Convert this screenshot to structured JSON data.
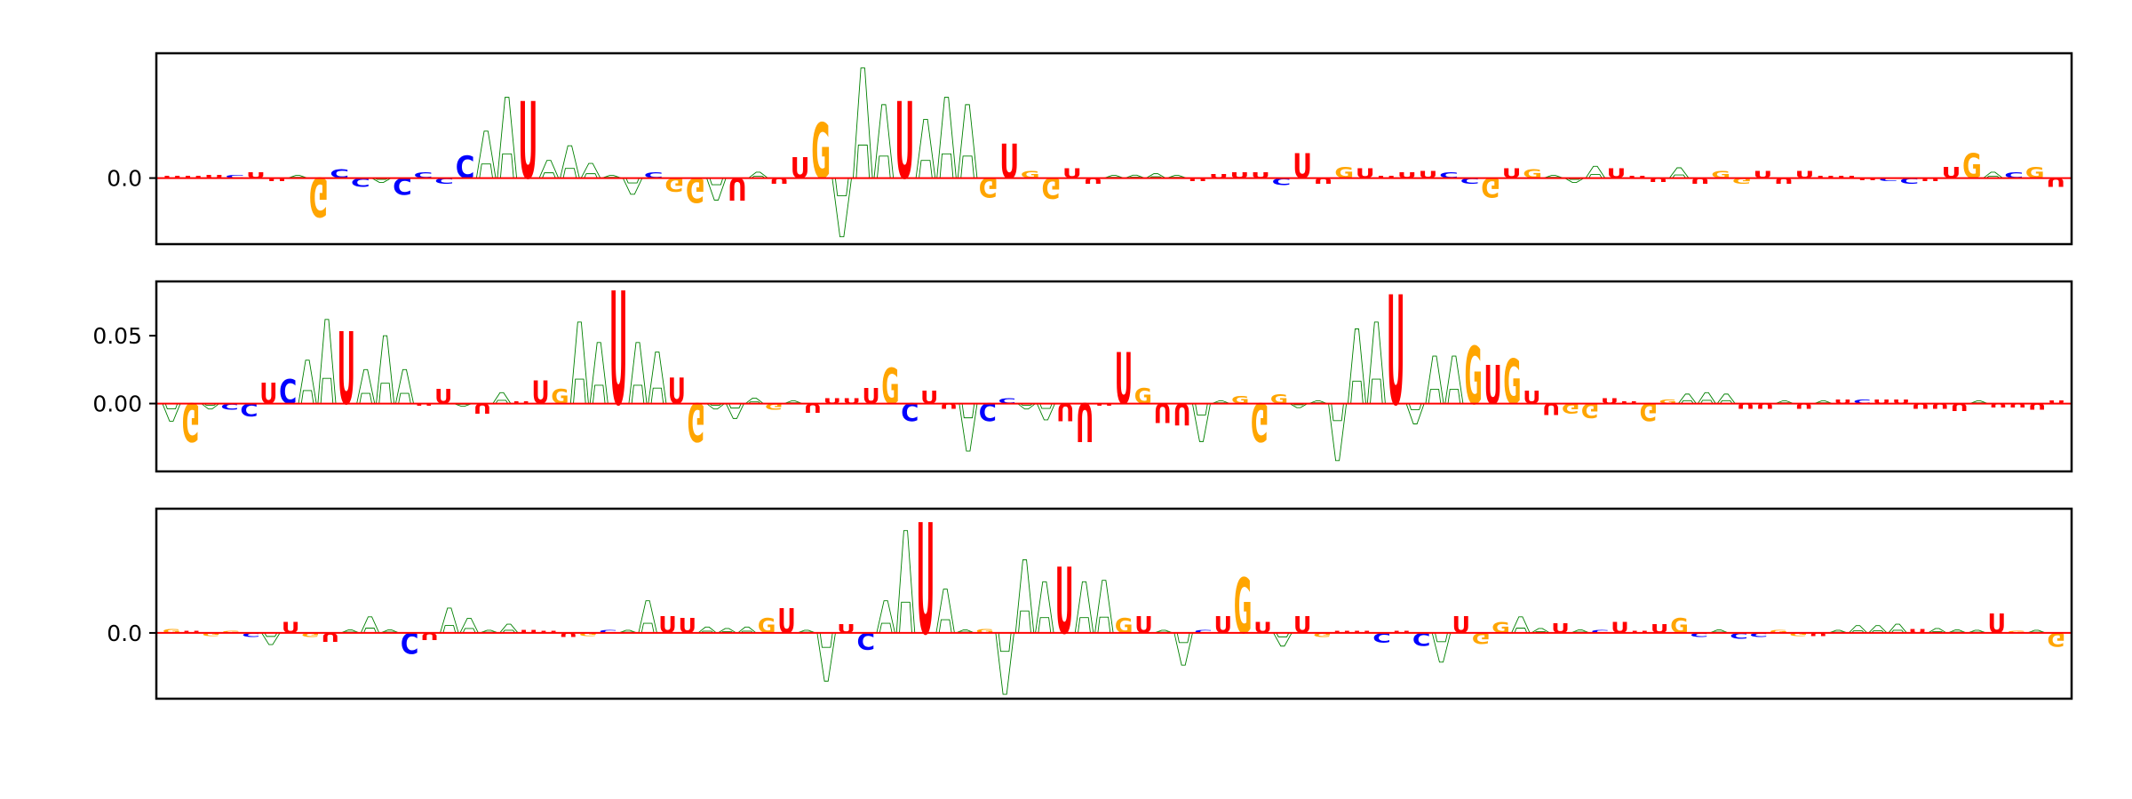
{
  "chart_data": [
    {
      "type": "sequence-logo",
      "ylim": [
        -0.045,
        0.085
      ],
      "yticks": [
        {
          "value": 0.0,
          "label": "0.0"
        }
      ],
      "colors": {
        "A": "#008000",
        "C": "#0000ff",
        "G": "#ffa500",
        "U": "#ff0000"
      },
      "positions": [
        {
          "l": "U",
          "v": 0.0
        },
        {
          "l": "U",
          "v": 0.001
        },
        {
          "l": "U",
          "v": 0.002
        },
        {
          "l": "C",
          "v": 0.002
        },
        {
          "l": "U",
          "v": 0.004
        },
        {
          "l": "U",
          "v": -0.002
        },
        {
          "l": "A",
          "v": 0.0
        },
        {
          "l": "G",
          "v": -0.028
        },
        {
          "l": "C",
          "v": 0.006
        },
        {
          "l": "C",
          "v": -0.006
        },
        {
          "l": "A",
          "v": -0.003
        },
        {
          "l": "C",
          "v": -0.012
        },
        {
          "l": "C",
          "v": 0.004
        },
        {
          "l": "C",
          "v": -0.004
        },
        {
          "l": "C",
          "v": 0.016
        },
        {
          "l": "A",
          "v": 0.032
        },
        {
          "l": "A",
          "v": 0.055
        },
        {
          "l": "U",
          "v": 0.055
        },
        {
          "l": "A",
          "v": 0.012
        },
        {
          "l": "A",
          "v": 0.022
        },
        {
          "l": "A",
          "v": 0.01
        },
        {
          "l": "A",
          "v": 0.001
        },
        {
          "l": "A",
          "v": -0.011
        },
        {
          "l": "C",
          "v": 0.004
        },
        {
          "l": "G",
          "v": -0.01
        },
        {
          "l": "G",
          "v": -0.018
        },
        {
          "l": "A",
          "v": -0.015
        },
        {
          "l": "U",
          "v": -0.016
        },
        {
          "l": "A",
          "v": 0.004
        },
        {
          "l": "U",
          "v": -0.004
        },
        {
          "l": "U",
          "v": 0.015
        },
        {
          "l": "G",
          "v": 0.04
        },
        {
          "l": "A",
          "v": -0.04
        },
        {
          "l": "A",
          "v": 0.075
        },
        {
          "l": "A",
          "v": 0.05
        },
        {
          "l": "U",
          "v": 0.055
        },
        {
          "l": "A",
          "v": 0.04
        },
        {
          "l": "A",
          "v": 0.055
        },
        {
          "l": "A",
          "v": 0.05
        },
        {
          "l": "G",
          "v": -0.014
        },
        {
          "l": "U",
          "v": 0.025
        },
        {
          "l": "G",
          "v": 0.005
        },
        {
          "l": "G",
          "v": -0.015
        },
        {
          "l": "U",
          "v": 0.007
        },
        {
          "l": "U",
          "v": -0.004
        },
        {
          "l": "A",
          "v": 0.001
        },
        {
          "l": "A",
          "v": 0.002
        },
        {
          "l": "A",
          "v": 0.003
        },
        {
          "l": "A",
          "v": 0.0
        },
        {
          "l": "U",
          "v": -0.002
        },
        {
          "l": "U",
          "v": 0.003
        },
        {
          "l": "U",
          "v": 0.004
        },
        {
          "l": "U",
          "v": 0.004
        },
        {
          "l": "C",
          "v": -0.005
        },
        {
          "l": "U",
          "v": 0.018
        },
        {
          "l": "U",
          "v": -0.004
        },
        {
          "l": "G",
          "v": 0.008
        },
        {
          "l": "U",
          "v": 0.007
        },
        {
          "l": "U",
          "v": 0.0
        },
        {
          "l": "U",
          "v": 0.004
        },
        {
          "l": "U",
          "v": 0.005
        },
        {
          "l": "C",
          "v": 0.004
        },
        {
          "l": "C",
          "v": -0.004
        },
        {
          "l": "G",
          "v": -0.014
        },
        {
          "l": "U",
          "v": 0.007
        },
        {
          "l": "G",
          "v": 0.006
        },
        {
          "l": "A",
          "v": 0.001
        },
        {
          "l": "A",
          "v": -0.003
        },
        {
          "l": "A",
          "v": 0.008
        },
        {
          "l": "U",
          "v": 0.007
        },
        {
          "l": "U",
          "v": 0.0
        },
        {
          "l": "U",
          "v": -0.003
        },
        {
          "l": "A",
          "v": 0.007
        },
        {
          "l": "U",
          "v": -0.004
        },
        {
          "l": "G",
          "v": 0.005
        },
        {
          "l": "G",
          "v": -0.004
        },
        {
          "l": "U",
          "v": 0.005
        },
        {
          "l": "U",
          "v": -0.004
        },
        {
          "l": "U",
          "v": 0.005
        },
        {
          "l": "U",
          "v": 0.001
        },
        {
          "l": "U",
          "v": 0.0
        },
        {
          "l": "U",
          "v": -0.001
        },
        {
          "l": "C",
          "v": -0.002
        },
        {
          "l": "C",
          "v": -0.004
        },
        {
          "l": "U",
          "v": -0.002
        },
        {
          "l": "U",
          "v": 0.008
        },
        {
          "l": "G",
          "v": 0.018
        },
        {
          "l": "A",
          "v": 0.004
        },
        {
          "l": "C",
          "v": 0.004
        },
        {
          "l": "G",
          "v": 0.008
        },
        {
          "l": "U",
          "v": -0.006
        }
      ]
    },
    {
      "type": "sequence-logo",
      "ylim": [
        -0.05,
        0.09
      ],
      "yticks": [
        {
          "value": 0.05,
          "label": "0.05"
        },
        {
          "value": 0.0,
          "label": "0.00"
        }
      ],
      "colors": {
        "A": "#008000",
        "C": "#0000ff",
        "G": "#ffa500",
        "U": "#ff0000"
      },
      "positions": [
        {
          "l": "A",
          "v": -0.013
        },
        {
          "l": "G",
          "v": -0.03
        },
        {
          "l": "A",
          "v": -0.004
        },
        {
          "l": "C",
          "v": -0.005
        },
        {
          "l": "C",
          "v": -0.01
        },
        {
          "l": "U",
          "v": 0.016
        },
        {
          "l": "C",
          "v": 0.019
        },
        {
          "l": "A",
          "v": 0.032
        },
        {
          "l": "A",
          "v": 0.062
        },
        {
          "l": "U",
          "v": 0.056
        },
        {
          "l": "A",
          "v": 0.025
        },
        {
          "l": "A",
          "v": 0.05
        },
        {
          "l": "A",
          "v": 0.025
        },
        {
          "l": "U",
          "v": -0.001
        },
        {
          "l": "U",
          "v": 0.011
        },
        {
          "l": "A",
          "v": -0.001
        },
        {
          "l": "U",
          "v": -0.008
        },
        {
          "l": "A",
          "v": 0.008
        },
        {
          "l": "U",
          "v": 0.001
        },
        {
          "l": "U",
          "v": 0.018
        },
        {
          "l": "G",
          "v": 0.011
        },
        {
          "l": "A",
          "v": 0.06
        },
        {
          "l": "A",
          "v": 0.045
        },
        {
          "l": "U",
          "v": 0.088
        },
        {
          "l": "A",
          "v": 0.045
        },
        {
          "l": "A",
          "v": 0.038
        },
        {
          "l": "U",
          "v": 0.02
        },
        {
          "l": "G",
          "v": -0.03
        },
        {
          "l": "A",
          "v": -0.004
        },
        {
          "l": "A",
          "v": -0.011
        },
        {
          "l": "A",
          "v": 0.004
        },
        {
          "l": "G",
          "v": -0.005
        },
        {
          "l": "A",
          "v": 0.001
        },
        {
          "l": "U",
          "v": -0.007
        },
        {
          "l": "U",
          "v": 0.004
        },
        {
          "l": "U",
          "v": 0.004
        },
        {
          "l": "U",
          "v": 0.012
        },
        {
          "l": "G",
          "v": 0.028
        },
        {
          "l": "C",
          "v": -0.014
        },
        {
          "l": "U",
          "v": 0.01
        },
        {
          "l": "U",
          "v": -0.004
        },
        {
          "l": "A",
          "v": -0.035
        },
        {
          "l": "C",
          "v": -0.014
        },
        {
          "l": "C",
          "v": 0.004
        },
        {
          "l": "A",
          "v": -0.004
        },
        {
          "l": "A",
          "v": -0.012
        },
        {
          "l": "U",
          "v": -0.014
        },
        {
          "l": "U",
          "v": -0.03
        },
        {
          "l": "U",
          "v": -0.001
        },
        {
          "l": "U",
          "v": 0.04
        },
        {
          "l": "G",
          "v": 0.012
        },
        {
          "l": "U",
          "v": -0.015
        },
        {
          "l": "U",
          "v": -0.017
        },
        {
          "l": "A",
          "v": -0.028
        },
        {
          "l": "A",
          "v": 0.002
        },
        {
          "l": "G",
          "v": 0.006
        },
        {
          "l": "G",
          "v": -0.03
        },
        {
          "l": "G",
          "v": 0.007
        },
        {
          "l": "A",
          "v": -0.003
        },
        {
          "l": "A",
          "v": 0.002
        },
        {
          "l": "A",
          "v": -0.042
        },
        {
          "l": "A",
          "v": 0.055
        },
        {
          "l": "A",
          "v": 0.06
        },
        {
          "l": "U",
          "v": 0.085
        },
        {
          "l": "A",
          "v": -0.015
        },
        {
          "l": "A",
          "v": 0.035
        },
        {
          "l": "A",
          "v": 0.035
        },
        {
          "l": "G",
          "v": 0.045
        },
        {
          "l": "U",
          "v": 0.03
        },
        {
          "l": "G",
          "v": 0.035
        },
        {
          "l": "U",
          "v": 0.01
        },
        {
          "l": "U",
          "v": -0.009
        },
        {
          "l": "G",
          "v": -0.008
        },
        {
          "l": "G",
          "v": -0.011
        },
        {
          "l": "U",
          "v": 0.004
        },
        {
          "l": "U",
          "v": 0.0
        },
        {
          "l": "G",
          "v": -0.014
        },
        {
          "l": "G",
          "v": 0.003
        },
        {
          "l": "A",
          "v": 0.007
        },
        {
          "l": "A",
          "v": 0.008
        },
        {
          "l": "A",
          "v": 0.007
        },
        {
          "l": "U",
          "v": -0.004
        },
        {
          "l": "U",
          "v": -0.004
        },
        {
          "l": "A",
          "v": 0.002
        },
        {
          "l": "U",
          "v": -0.004
        },
        {
          "l": "A",
          "v": 0.001
        },
        {
          "l": "U",
          "v": 0.003
        },
        {
          "l": "C",
          "v": 0.003
        },
        {
          "l": "U",
          "v": 0.003
        },
        {
          "l": "U",
          "v": 0.003
        },
        {
          "l": "U",
          "v": -0.004
        },
        {
          "l": "U",
          "v": -0.004
        },
        {
          "l": "U",
          "v": -0.006
        },
        {
          "l": "A",
          "v": 0.001
        },
        {
          "l": "U",
          "v": -0.003
        },
        {
          "l": "U",
          "v": -0.003
        },
        {
          "l": "U",
          "v": -0.005
        },
        {
          "l": "U",
          "v": 0.002
        }
      ]
    },
    {
      "type": "sequence-logo",
      "ylim": [
        -0.045,
        0.085
      ],
      "yticks": [
        {
          "value": 0.0,
          "label": "0.0"
        }
      ],
      "colors": {
        "A": "#008000",
        "C": "#0000ff",
        "G": "#ffa500",
        "U": "#ff0000"
      },
      "positions": [
        {
          "l": "G",
          "v": 0.003
        },
        {
          "l": "U",
          "v": 0.001
        },
        {
          "l": "G",
          "v": -0.002
        },
        {
          "l": "G",
          "v": 0.001
        },
        {
          "l": "C",
          "v": -0.003
        },
        {
          "l": "A",
          "v": -0.008
        },
        {
          "l": "U",
          "v": 0.008
        },
        {
          "l": "G",
          "v": -0.003
        },
        {
          "l": "U",
          "v": -0.006
        },
        {
          "l": "A",
          "v": 0.002
        },
        {
          "l": "A",
          "v": 0.011
        },
        {
          "l": "A",
          "v": 0.002
        },
        {
          "l": "C",
          "v": -0.015
        },
        {
          "l": "U",
          "v": -0.005
        },
        {
          "l": "A",
          "v": 0.017
        },
        {
          "l": "A",
          "v": 0.01
        },
        {
          "l": "A",
          "v": 0.0
        },
        {
          "l": "A",
          "v": 0.006
        },
        {
          "l": "U",
          "v": 0.002
        },
        {
          "l": "U",
          "v": 0.001
        },
        {
          "l": "U",
          "v": -0.003
        },
        {
          "l": "G",
          "v": -0.002
        },
        {
          "l": "C",
          "v": 0.002
        },
        {
          "l": "A",
          "v": 0.001
        },
        {
          "l": "A",
          "v": 0.022
        },
        {
          "l": "U",
          "v": 0.012
        },
        {
          "l": "U",
          "v": 0.011
        },
        {
          "l": "A",
          "v": 0.004
        },
        {
          "l": "A",
          "v": 0.003
        },
        {
          "l": "A",
          "v": 0.004
        },
        {
          "l": "G",
          "v": 0.011
        },
        {
          "l": "U",
          "v": 0.018
        },
        {
          "l": "A",
          "v": 0.001
        },
        {
          "l": "A",
          "v": -0.033
        },
        {
          "l": "U",
          "v": 0.006
        },
        {
          "l": "C",
          "v": -0.012
        },
        {
          "l": "A",
          "v": 0.022
        },
        {
          "l": "A",
          "v": 0.07
        },
        {
          "l": "U",
          "v": 0.08
        },
        {
          "l": "A",
          "v": 0.03
        },
        {
          "l": "A",
          "v": 0.002
        },
        {
          "l": "G",
          "v": 0.003
        },
        {
          "l": "A",
          "v": -0.042
        },
        {
          "l": "A",
          "v": 0.05
        },
        {
          "l": "A",
          "v": 0.035
        },
        {
          "l": "U",
          "v": 0.048
        },
        {
          "l": "A",
          "v": 0.035
        },
        {
          "l": "A",
          "v": 0.036
        },
        {
          "l": "G",
          "v": 0.011
        },
        {
          "l": "U",
          "v": 0.012
        },
        {
          "l": "A",
          "v": 0.001
        },
        {
          "l": "A",
          "v": -0.022
        },
        {
          "l": "C",
          "v": 0.002
        },
        {
          "l": "U",
          "v": 0.012
        },
        {
          "l": "G",
          "v": 0.04
        },
        {
          "l": "U",
          "v": 0.008
        },
        {
          "l": "A",
          "v": -0.009
        },
        {
          "l": "U",
          "v": 0.012
        },
        {
          "l": "G",
          "v": -0.003
        },
        {
          "l": "U",
          "v": 0.001
        },
        {
          "l": "U",
          "v": 0.001
        },
        {
          "l": "C",
          "v": -0.007
        },
        {
          "l": "U",
          "v": 0.0
        },
        {
          "l": "C",
          "v": -0.009
        },
        {
          "l": "A",
          "v": -0.02
        },
        {
          "l": "U",
          "v": 0.012
        },
        {
          "l": "G",
          "v": -0.008
        },
        {
          "l": "G",
          "v": 0.008
        },
        {
          "l": "A",
          "v": 0.011
        },
        {
          "l": "A",
          "v": 0.003
        },
        {
          "l": "U",
          "v": 0.007
        },
        {
          "l": "A",
          "v": 0.002
        },
        {
          "l": "C",
          "v": 0.002
        },
        {
          "l": "U",
          "v": 0.008
        },
        {
          "l": "U",
          "v": 0.0
        },
        {
          "l": "U",
          "v": 0.006
        },
        {
          "l": "G",
          "v": 0.011
        },
        {
          "l": "C",
          "v": -0.003
        },
        {
          "l": "A",
          "v": 0.002
        },
        {
          "l": "C",
          "v": -0.004
        },
        {
          "l": "C",
          "v": -0.003
        },
        {
          "l": "G",
          "v": 0.002
        },
        {
          "l": "G",
          "v": -0.002
        },
        {
          "l": "U",
          "v": -0.002
        },
        {
          "l": "A",
          "v": 0.001
        },
        {
          "l": "A",
          "v": 0.005
        },
        {
          "l": "A",
          "v": 0.005
        },
        {
          "l": "A",
          "v": 0.006
        },
        {
          "l": "U",
          "v": 0.003
        },
        {
          "l": "A",
          "v": 0.003
        },
        {
          "l": "A",
          "v": 0.002
        },
        {
          "l": "A",
          "v": 0.001
        },
        {
          "l": "U",
          "v": 0.014
        },
        {
          "l": "G",
          "v": 0.001
        },
        {
          "l": "A",
          "v": 0.0
        },
        {
          "l": "G",
          "v": -0.01
        }
      ]
    }
  ]
}
